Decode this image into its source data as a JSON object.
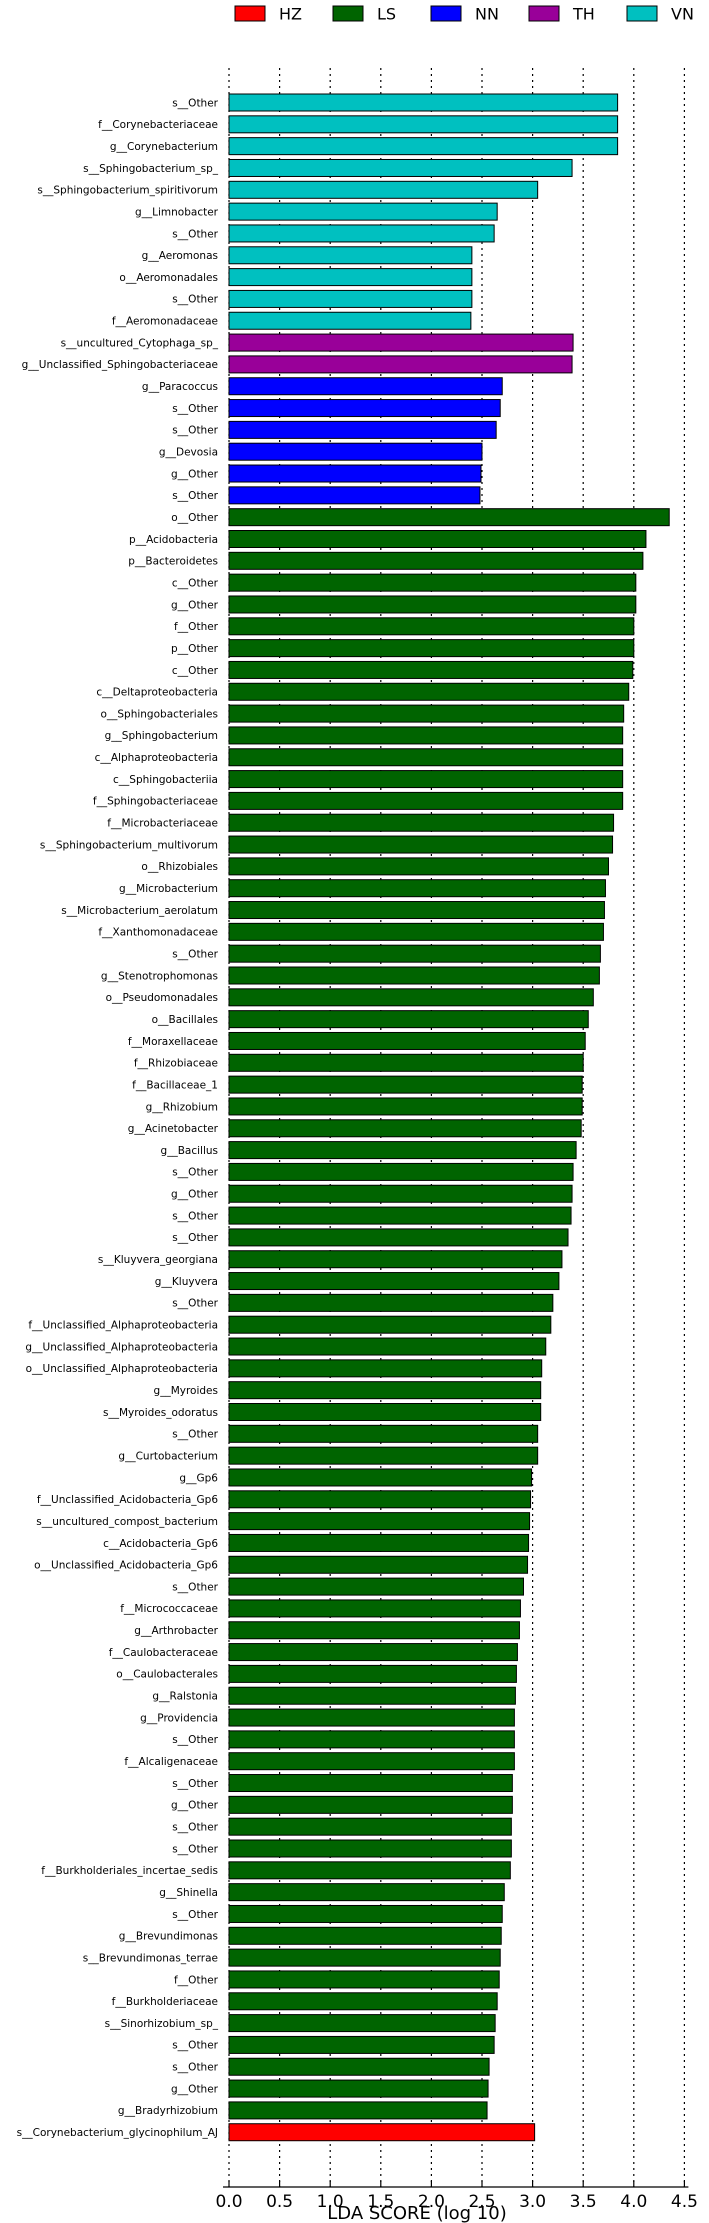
{
  "chart_data": {
    "type": "bar",
    "orientation": "horizontal",
    "xlabel": "LDA SCORE (log 10)",
    "xlim": [
      0,
      4.5
    ],
    "xticks": [
      "0.0",
      "0.5",
      "1.0",
      "1.5",
      "2.0",
      "2.5",
      "3.0",
      "3.5",
      "4.0",
      "4.5"
    ],
    "grid": "vertical dotted lines at each 0.5",
    "legend_position": "top",
    "groups": [
      {
        "name": "HZ",
        "color": "#ff0000"
      },
      {
        "name": "LS",
        "color": "#006400"
      },
      {
        "name": "NN",
        "color": "#0000ff"
      },
      {
        "name": "TH",
        "color": "#990099"
      },
      {
        "name": "VN",
        "color": "#00c0c0"
      }
    ],
    "bars": [
      {
        "label": "s__Other",
        "value": 3.84,
        "group": "VN"
      },
      {
        "label": "f__Corynebacteriaceae",
        "value": 3.84,
        "group": "VN"
      },
      {
        "label": "g__Corynebacterium",
        "value": 3.84,
        "group": "VN"
      },
      {
        "label": "s__Sphingobacterium_sp_",
        "value": 3.39,
        "group": "VN"
      },
      {
        "label": "s__Sphingobacterium_spiritivorum",
        "value": 3.05,
        "group": "VN"
      },
      {
        "label": "g__Limnobacter",
        "value": 2.65,
        "group": "VN"
      },
      {
        "label": "s__Other",
        "value": 2.62,
        "group": "VN"
      },
      {
        "label": "g__Aeromonas",
        "value": 2.4,
        "group": "VN"
      },
      {
        "label": "o__Aeromonadales",
        "value": 2.4,
        "group": "VN"
      },
      {
        "label": "s__Other",
        "value": 2.4,
        "group": "VN"
      },
      {
        "label": "f__Aeromonadaceae",
        "value": 2.39,
        "group": "VN"
      },
      {
        "label": "s__uncultured_Cytophaga_sp_",
        "value": 3.4,
        "group": "TH"
      },
      {
        "label": "g__Unclassified_Sphingobacteriaceae",
        "value": 3.39,
        "group": "TH"
      },
      {
        "label": "g__Paracoccus",
        "value": 2.7,
        "group": "NN"
      },
      {
        "label": "s__Other",
        "value": 2.68,
        "group": "NN"
      },
      {
        "label": "s__Other",
        "value": 2.64,
        "group": "NN"
      },
      {
        "label": "g__Devosia",
        "value": 2.5,
        "group": "NN"
      },
      {
        "label": "g__Other",
        "value": 2.49,
        "group": "NN"
      },
      {
        "label": "s__Other",
        "value": 2.48,
        "group": "NN"
      },
      {
        "label": "o__Other",
        "value": 4.35,
        "group": "LS"
      },
      {
        "label": "p__Acidobacteria",
        "value": 4.12,
        "group": "LS"
      },
      {
        "label": "p__Bacteroidetes",
        "value": 4.09,
        "group": "LS"
      },
      {
        "label": "c__Other",
        "value": 4.02,
        "group": "LS"
      },
      {
        "label": "g__Other",
        "value": 4.02,
        "group": "LS"
      },
      {
        "label": "f__Other",
        "value": 4.0,
        "group": "LS"
      },
      {
        "label": "p__Other",
        "value": 4.0,
        "group": "LS"
      },
      {
        "label": "c__Other",
        "value": 3.99,
        "group": "LS"
      },
      {
        "label": "c__Deltaproteobacteria",
        "value": 3.95,
        "group": "LS"
      },
      {
        "label": "o__Sphingobacteriales",
        "value": 3.9,
        "group": "LS"
      },
      {
        "label": "g__Sphingobacterium",
        "value": 3.89,
        "group": "LS"
      },
      {
        "label": "c__Alphaproteobacteria",
        "value": 3.89,
        "group": "LS"
      },
      {
        "label": "c__Sphingobacteriia",
        "value": 3.89,
        "group": "LS"
      },
      {
        "label": "f__Sphingobacteriaceae",
        "value": 3.89,
        "group": "LS"
      },
      {
        "label": "f__Microbacteriaceae",
        "value": 3.8,
        "group": "LS"
      },
      {
        "label": "s__Sphingobacterium_multivorum",
        "value": 3.79,
        "group": "LS"
      },
      {
        "label": "o__Rhizobiales",
        "value": 3.75,
        "group": "LS"
      },
      {
        "label": "g__Microbacterium",
        "value": 3.72,
        "group": "LS"
      },
      {
        "label": "s__Microbacterium_aerolatum",
        "value": 3.71,
        "group": "LS"
      },
      {
        "label": "f__Xanthomonadaceae",
        "value": 3.7,
        "group": "LS"
      },
      {
        "label": "s__Other",
        "value": 3.67,
        "group": "LS"
      },
      {
        "label": "g__Stenotrophomonas",
        "value": 3.66,
        "group": "LS"
      },
      {
        "label": "o__Pseudomonadales",
        "value": 3.6,
        "group": "LS"
      },
      {
        "label": "o__Bacillales",
        "value": 3.55,
        "group": "LS"
      },
      {
        "label": "f__Moraxellaceae",
        "value": 3.52,
        "group": "LS"
      },
      {
        "label": "f__Rhizobiaceae",
        "value": 3.5,
        "group": "LS"
      },
      {
        "label": "f__Bacillaceae_1",
        "value": 3.49,
        "group": "LS"
      },
      {
        "label": "g__Rhizobium",
        "value": 3.49,
        "group": "LS"
      },
      {
        "label": "g__Acinetobacter",
        "value": 3.48,
        "group": "LS"
      },
      {
        "label": "g__Bacillus",
        "value": 3.43,
        "group": "LS"
      },
      {
        "label": "s__Other",
        "value": 3.4,
        "group": "LS"
      },
      {
        "label": "g__Other",
        "value": 3.39,
        "group": "LS"
      },
      {
        "label": "s__Other",
        "value": 3.38,
        "group": "LS"
      },
      {
        "label": "s__Other",
        "value": 3.35,
        "group": "LS"
      },
      {
        "label": "s__Kluyvera_georgiana",
        "value": 3.29,
        "group": "LS"
      },
      {
        "label": "g__Kluyvera",
        "value": 3.26,
        "group": "LS"
      },
      {
        "label": "s__Other",
        "value": 3.2,
        "group": "LS"
      },
      {
        "label": "f__Unclassified_Alphaproteobacteria",
        "value": 3.18,
        "group": "LS"
      },
      {
        "label": "g__Unclassified_Alphaproteobacteria",
        "value": 3.13,
        "group": "LS"
      },
      {
        "label": "o__Unclassified_Alphaproteobacteria",
        "value": 3.09,
        "group": "LS"
      },
      {
        "label": "g__Myroides",
        "value": 3.08,
        "group": "LS"
      },
      {
        "label": "s__Myroides_odoratus",
        "value": 3.08,
        "group": "LS"
      },
      {
        "label": "s__Other",
        "value": 3.05,
        "group": "LS"
      },
      {
        "label": "g__Curtobacterium",
        "value": 3.05,
        "group": "LS"
      },
      {
        "label": "g__Gp6",
        "value": 2.99,
        "group": "LS"
      },
      {
        "label": "f__Unclassified_Acidobacteria_Gp6",
        "value": 2.98,
        "group": "LS"
      },
      {
        "label": "s__uncultured_compost_bacterium",
        "value": 2.97,
        "group": "LS"
      },
      {
        "label": "c__Acidobacteria_Gp6",
        "value": 2.96,
        "group": "LS"
      },
      {
        "label": "o__Unclassified_Acidobacteria_Gp6",
        "value": 2.95,
        "group": "LS"
      },
      {
        "label": "s__Other",
        "value": 2.91,
        "group": "LS"
      },
      {
        "label": "f__Micrococcaceae",
        "value": 2.88,
        "group": "LS"
      },
      {
        "label": "g__Arthrobacter",
        "value": 2.87,
        "group": "LS"
      },
      {
        "label": "f__Caulobacteraceae",
        "value": 2.85,
        "group": "LS"
      },
      {
        "label": "o__Caulobacterales",
        "value": 2.84,
        "group": "LS"
      },
      {
        "label": "g__Ralstonia",
        "value": 2.83,
        "group": "LS"
      },
      {
        "label": "g__Providencia",
        "value": 2.82,
        "group": "LS"
      },
      {
        "label": "s__Other",
        "value": 2.82,
        "group": "LS"
      },
      {
        "label": "f__Alcaligenaceae",
        "value": 2.82,
        "group": "LS"
      },
      {
        "label": "s__Other",
        "value": 2.8,
        "group": "LS"
      },
      {
        "label": "g__Other",
        "value": 2.8,
        "group": "LS"
      },
      {
        "label": "s__Other",
        "value": 2.79,
        "group": "LS"
      },
      {
        "label": "s__Other",
        "value": 2.79,
        "group": "LS"
      },
      {
        "label": "f__Burkholderiales_incertae_sedis",
        "value": 2.78,
        "group": "LS"
      },
      {
        "label": "g__Shinella",
        "value": 2.72,
        "group": "LS"
      },
      {
        "label": "s__Other",
        "value": 2.7,
        "group": "LS"
      },
      {
        "label": "g__Brevundimonas",
        "value": 2.69,
        "group": "LS"
      },
      {
        "label": "s__Brevundimonas_terrae",
        "value": 2.68,
        "group": "LS"
      },
      {
        "label": "f__Other",
        "value": 2.67,
        "group": "LS"
      },
      {
        "label": "f__Burkholderiaceae",
        "value": 2.65,
        "group": "LS"
      },
      {
        "label": "s__Sinorhizobium_sp_",
        "value": 2.63,
        "group": "LS"
      },
      {
        "label": "s__Other",
        "value": 2.62,
        "group": "LS"
      },
      {
        "label": "s__Other",
        "value": 2.57,
        "group": "LS"
      },
      {
        "label": "g__Other",
        "value": 2.56,
        "group": "LS"
      },
      {
        "label": "g__Bradyrhizobium",
        "value": 2.55,
        "group": "LS"
      },
      {
        "label": "s__Corynebacterium_glycinophilum_AJ",
        "value": 3.02,
        "group": "HZ"
      }
    ]
  }
}
